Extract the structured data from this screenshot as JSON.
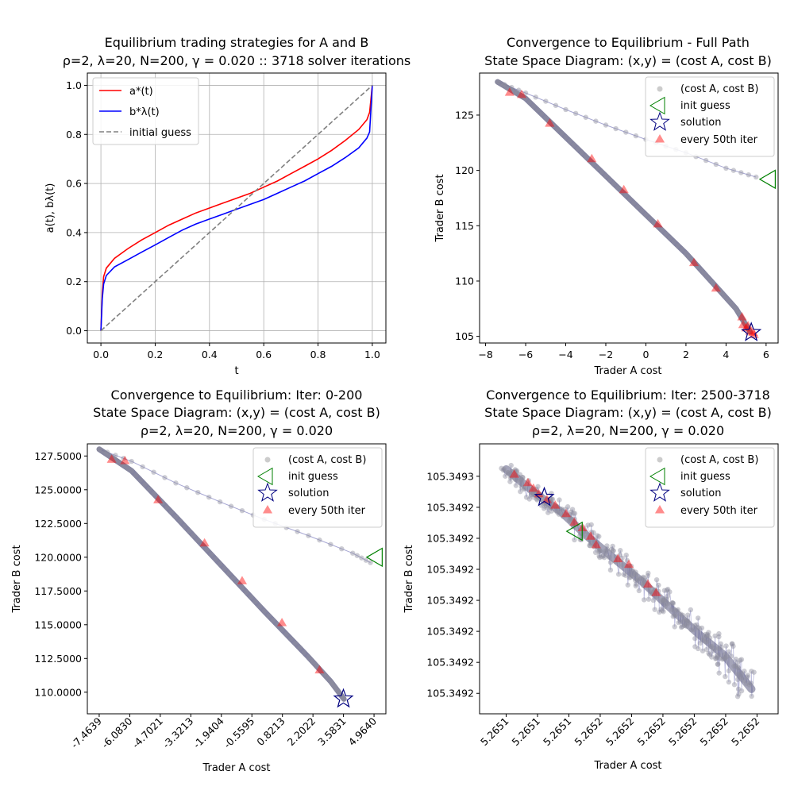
{
  "chart_data": [
    {
      "type": "line",
      "title_line1": "Equilibrium trading strategies for A and B",
      "title_line2": "ρ=2, λ=20, N=200, γ = 0.020 :: 3718 solver iterations",
      "xlabel": "t",
      "ylabel": "a(t), bλ(t)",
      "xlim": [
        -0.05,
        1.05
      ],
      "ylim": [
        -0.05,
        1.05
      ],
      "xticks": [
        "0.0",
        "0.2",
        "0.4",
        "0.6",
        "0.8",
        "1.0"
      ],
      "yticks": [
        "0.0",
        "0.2",
        "0.4",
        "0.6",
        "0.8",
        "1.0"
      ],
      "grid": true,
      "legend_position": "top-left",
      "legend": [
        "a*(t)",
        "b*λ(t)",
        "initial guess"
      ],
      "series": [
        {
          "name": "a*(t)",
          "color": "#ff0000",
          "style": "solid",
          "x": [
            0.0,
            0.005,
            0.01,
            0.02,
            0.05,
            0.1,
            0.15,
            0.2,
            0.25,
            0.3,
            0.35,
            0.4,
            0.45,
            0.5,
            0.55,
            0.6,
            0.65,
            0.7,
            0.75,
            0.8,
            0.85,
            0.9,
            0.95,
            0.98,
            0.99,
            1.0
          ],
          "y": [
            0.0,
            0.15,
            0.22,
            0.255,
            0.295,
            0.335,
            0.37,
            0.4,
            0.43,
            0.455,
            0.48,
            0.5,
            0.52,
            0.54,
            0.56,
            0.585,
            0.61,
            0.64,
            0.67,
            0.7,
            0.735,
            0.775,
            0.82,
            0.86,
            0.89,
            1.0
          ]
        },
        {
          "name": "b*λ(t)",
          "color": "#0000ff",
          "style": "solid",
          "x": [
            0.0,
            0.005,
            0.01,
            0.02,
            0.05,
            0.1,
            0.15,
            0.2,
            0.25,
            0.3,
            0.35,
            0.4,
            0.45,
            0.5,
            0.55,
            0.6,
            0.65,
            0.7,
            0.75,
            0.8,
            0.85,
            0.9,
            0.95,
            0.98,
            0.99,
            1.0
          ],
          "y": [
            0.0,
            0.13,
            0.19,
            0.225,
            0.26,
            0.29,
            0.32,
            0.35,
            0.38,
            0.41,
            0.435,
            0.455,
            0.475,
            0.495,
            0.515,
            0.535,
            0.56,
            0.585,
            0.61,
            0.64,
            0.67,
            0.705,
            0.745,
            0.785,
            0.81,
            1.0
          ]
        },
        {
          "name": "initial guess",
          "color": "#808080",
          "style": "dashed",
          "x": [
            0.0,
            1.0
          ],
          "y": [
            0.0,
            1.0
          ]
        }
      ]
    },
    {
      "type": "scatter",
      "title_line1": "Convergence to Equilibrium - Full Path",
      "title_line2": "State Space Diagram: (x,y) = (cost A, cost B)",
      "xlabel": "Trader A cost",
      "ylabel": "Trader B cost",
      "xlim": [
        -8.3,
        6.6
      ],
      "ylim": [
        104.4,
        128.8
      ],
      "xticks": [
        "−8",
        "−6",
        "−4",
        "−2",
        "0",
        "2",
        "4",
        "6"
      ],
      "xtick_values": [
        -8,
        -6,
        -4,
        -2,
        0,
        2,
        4,
        6
      ],
      "yticks": [
        "105",
        "110",
        "115",
        "120",
        "125"
      ],
      "ytick_values": [
        105,
        110,
        115,
        120,
        125
      ],
      "grid": false,
      "legend_position": "top-right",
      "legend": [
        "(cost A, cost B)",
        "init guess",
        "solution",
        "every 50th iter"
      ],
      "upper_path": [
        [
          -7.4,
          128.0
        ],
        [
          -6.0,
          127.0
        ],
        [
          -4.0,
          125.5
        ],
        [
          -2.0,
          124.1
        ],
        [
          0.0,
          122.8
        ],
        [
          2.0,
          121.6
        ],
        [
          4.0,
          120.2
        ],
        [
          5.5,
          119.4
        ]
      ],
      "lower_path": [
        [
          -7.4,
          128.0
        ],
        [
          -6.0,
          126.5
        ],
        [
          -4.0,
          123.0
        ],
        [
          -2.0,
          119.5
        ],
        [
          0.0,
          116.0
        ],
        [
          2.0,
          112.5
        ],
        [
          3.5,
          109.5
        ],
        [
          4.5,
          107.5
        ],
        [
          5.2,
          105.4
        ]
      ],
      "init_guess": [
        6.2,
        119.2
      ],
      "solution": [
        5.26,
        105.35
      ],
      "every_50th": [
        [
          -6.8,
          127.0
        ],
        [
          -6.2,
          126.8
        ],
        [
          -4.8,
          124.2
        ],
        [
          -2.7,
          121.0
        ],
        [
          -1.1,
          118.2
        ],
        [
          0.6,
          115.1
        ],
        [
          2.4,
          111.6
        ],
        [
          3.5,
          109.3
        ],
        [
          4.8,
          106.7
        ],
        [
          4.85,
          106.0
        ],
        [
          5.0,
          105.7
        ],
        [
          5.1,
          105.9
        ],
        [
          5.2,
          105.4
        ],
        [
          5.35,
          105.3
        ],
        [
          5.4,
          105.1
        ]
      ]
    },
    {
      "type": "scatter",
      "title_line1": "Convergence to Equilibrium: Iter: 0-200",
      "title_line2": "State Space Diagram: (x,y) = (cost A, cost B)",
      "title_line3": "ρ=2, λ=20, N=200, γ = 0.020",
      "xlabel": "Trader A cost",
      "ylabel": "Trader B cost",
      "xlim": [
        -8.0,
        5.5
      ],
      "ylim": [
        108.4,
        128.4
      ],
      "xticks": [
        "-7.4639",
        "-6.0830",
        "-4.7021",
        "-3.3213",
        "-1.9404",
        "-0.5595",
        "0.8213",
        "2.2022",
        "3.5831",
        "4.9640"
      ],
      "xtick_values": [
        -7.4639,
        -6.083,
        -4.7021,
        -3.3213,
        -1.9404,
        -0.5595,
        0.8213,
        2.2022,
        3.5831,
        4.964
      ],
      "yticks": [
        "110.0000",
        "112.5000",
        "115.0000",
        "117.5000",
        "120.0000",
        "122.5000",
        "125.0000",
        "127.5000"
      ],
      "ytick_values": [
        110,
        112.5,
        115,
        117.5,
        120,
        122.5,
        125,
        127.5
      ],
      "grid": false,
      "legend_position": "top-right",
      "legend": [
        "(cost A, cost B)",
        "init guess",
        "solution",
        "every 50th iter"
      ],
      "upper_path": [
        [
          -7.46,
          128.0
        ],
        [
          -6.0,
          127.1
        ],
        [
          -4.0,
          125.5
        ],
        [
          -2.0,
          124.1
        ],
        [
          0.0,
          122.8
        ],
        [
          2.0,
          121.6
        ],
        [
          4.0,
          120.3
        ],
        [
          4.8,
          119.6
        ]
      ],
      "lower_path": [
        [
          -7.46,
          128.0
        ],
        [
          -6.0,
          126.4
        ],
        [
          -4.0,
          123.0
        ],
        [
          -2.0,
          119.5
        ],
        [
          0.0,
          116.0
        ],
        [
          2.0,
          112.6
        ],
        [
          3.0,
          110.8
        ],
        [
          3.6,
          109.5
        ]
      ],
      "init_guess": [
        5.1,
        120.0
      ],
      "solution": [
        3.58,
        109.5
      ],
      "every_50th": [
        [
          -6.9,
          127.2
        ],
        [
          -6.3,
          127.1
        ],
        [
          -4.8,
          124.2
        ],
        [
          -2.7,
          121.0
        ],
        [
          -1.0,
          118.2
        ],
        [
          0.8,
          115.1
        ],
        [
          2.5,
          111.6
        ]
      ]
    },
    {
      "type": "scatter",
      "title_line1": "Convergence to Equilibrium: Iter: 2500-3718",
      "title_line2": "State Space Diagram: (x,y) = (cost A, cost B)",
      "title_line3": "ρ=2, λ=20, N=200, γ = 0.020",
      "xlabel": "Trader A cost",
      "ylabel": "Trader B cost",
      "xlim": [
        -0.45,
        9.45
      ],
      "ylim": [
        -0.45,
        8.45
      ],
      "xticks": [
        "5.2651",
        "5.2651",
        "5.2651",
        "5.2652",
        "5.2652",
        "5.2652",
        "5.2652",
        "5.2652",
        "5.2652"
      ],
      "yticks": [
        "105.3492",
        "105.3492",
        "105.3492",
        "105.3492",
        "105.3492",
        "105.3492",
        "105.3492",
        "105.3493"
      ],
      "grid": false,
      "legend_position": "top-right",
      "legend": [
        "(cost A, cost B)",
        "init guess",
        "solution",
        "every 50th iter"
      ],
      "cloud_center": [
        [
          0.0,
          8.0
        ],
        [
          1.0,
          7.2
        ],
        [
          2.0,
          6.5
        ],
        [
          3.0,
          5.6
        ],
        [
          4.0,
          4.8
        ],
        [
          5.0,
          4.0
        ],
        [
          6.0,
          3.1
        ],
        [
          7.0,
          2.2
        ],
        [
          8.0,
          1.4
        ],
        [
          9.0,
          0.2
        ]
      ],
      "init_guess": [
        2.6,
        5.8
      ],
      "solution": [
        1.4,
        7.0
      ],
      "every_50th": [
        [
          0.3,
          7.8
        ],
        [
          0.8,
          7.5
        ],
        [
          1.0,
          7.3
        ],
        [
          1.2,
          7.1
        ],
        [
          1.5,
          6.9
        ],
        [
          1.8,
          6.7
        ],
        [
          2.2,
          6.4
        ],
        [
          2.5,
          6.1
        ],
        [
          2.8,
          5.9
        ],
        [
          3.1,
          5.6
        ],
        [
          3.3,
          5.3
        ],
        [
          4.1,
          4.8
        ],
        [
          4.5,
          4.6
        ],
        [
          5.2,
          3.9
        ],
        [
          5.5,
          3.6
        ]
      ]
    }
  ]
}
